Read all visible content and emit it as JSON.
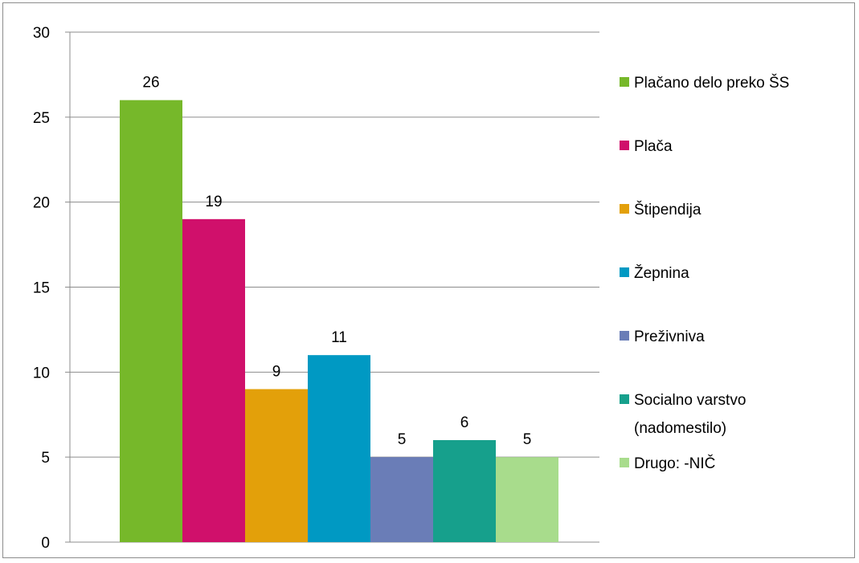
{
  "chart_data": {
    "type": "bar",
    "title": "",
    "xlabel": "",
    "ylabel": "",
    "ylim": [
      0,
      30
    ],
    "yticks": [
      0,
      5,
      10,
      15,
      20,
      25,
      30
    ],
    "grid": true,
    "legend_position": "right",
    "series": [
      {
        "name": "Plačano delo preko ŠS",
        "value": 26,
        "color": "#76b82a"
      },
      {
        "name": "Plača",
        "value": 19,
        "color": "#d0106b"
      },
      {
        "name": "Štipendija",
        "value": 9,
        "color": "#e3a00a"
      },
      {
        "name": "Žepnina",
        "value": 11,
        "color": "#0099c3"
      },
      {
        "name": "Preživniva",
        "value": 5,
        "color": "#6a7db7"
      },
      {
        "name": "Socialno varstvo (nadomestilo)",
        "legend_lines": [
          "Socialno varstvo",
          "(nadomestilo)"
        ],
        "value": 6,
        "color": "#16a08c"
      },
      {
        "name": "Drugo: -NIČ",
        "value": 5,
        "color": "#a8dc8c"
      }
    ]
  }
}
